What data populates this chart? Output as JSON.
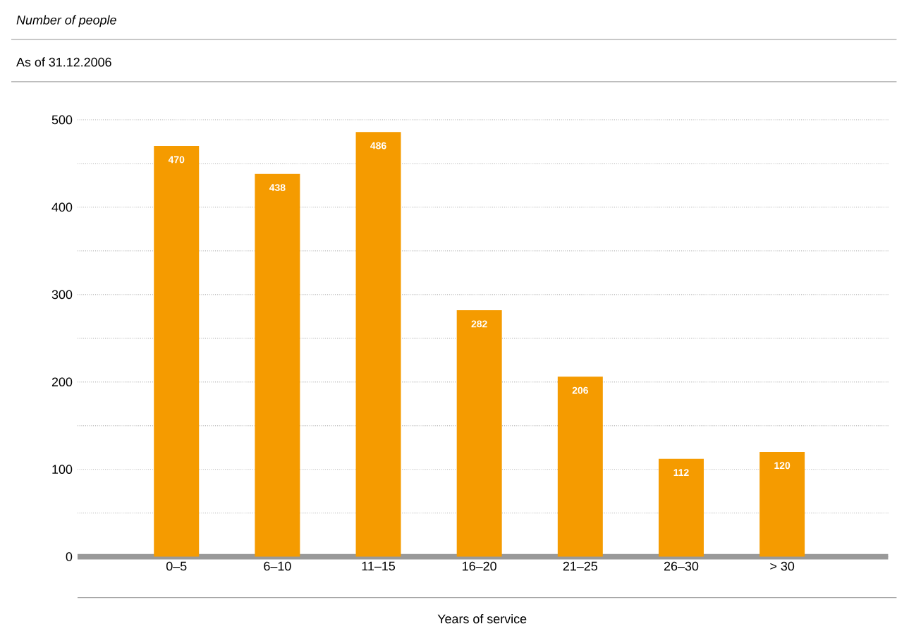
{
  "chart_data": {
    "type": "bar",
    "title": "Number of people",
    "subtitle": "As of 31.12.2006",
    "xlabel": "Years of service",
    "categories": [
      "0–5",
      "6–10",
      "11–15",
      "16–20",
      "21–25",
      "26–30",
      "> 30"
    ],
    "values": [
      470,
      438,
      486,
      282,
      206,
      112,
      120
    ],
    "color": "#f59b00",
    "ylim": [
      0,
      500
    ],
    "yticks": [
      0,
      {
        "value": 50,
        "label": null
      },
      100,
      {
        "value": 150,
        "label": null
      },
      200,
      {
        "value": 250,
        "label": null
      },
      300,
      {
        "value": 350,
        "label": null
      },
      400,
      {
        "value": 450,
        "label": null
      },
      500
    ],
    "grid": "y",
    "data_labels": true
  }
}
